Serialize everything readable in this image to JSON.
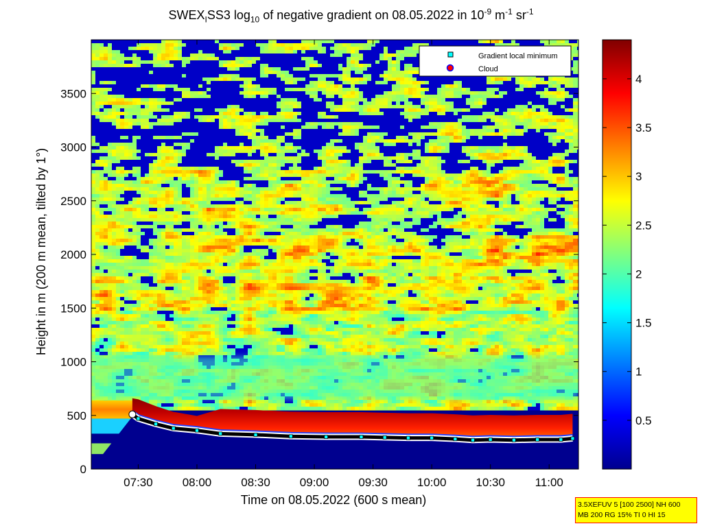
{
  "chart_data": {
    "type": "heatmap",
    "title_parts": {
      "pre": "SWEX",
      "sub1": "I",
      "mid": "SS3 log",
      "sub2": "10",
      "post": " of negative gradient on 08.05.2022 in 10",
      "sup1": "-9",
      "unit1": " m",
      "sup2": "-1",
      "unit2": " sr",
      "sup3": "-1"
    },
    "xlabel": "Time on 08.05.2022 (600 s mean)",
    "ylabel": "Height in m (200 m mean, tilted by 1°)",
    "x_range_hours": [
      7.1,
      11.25
    ],
    "x_ticks": [
      {
        "v": 7.5,
        "label": "07:30"
      },
      {
        "v": 8.0,
        "label": "08:00"
      },
      {
        "v": 8.5,
        "label": "08:30"
      },
      {
        "v": 9.0,
        "label": "09:00"
      },
      {
        "v": 9.5,
        "label": "09:30"
      },
      {
        "v": 10.0,
        "label": "10:00"
      },
      {
        "v": 10.5,
        "label": "10:30"
      },
      {
        "v": 11.0,
        "label": "11:00"
      }
    ],
    "ylim": [
      0,
      4000
    ],
    "y_ticks": [
      {
        "v": 0,
        "label": "0"
      },
      {
        "v": 500,
        "label": "500"
      },
      {
        "v": 1000,
        "label": "1000"
      },
      {
        "v": 1500,
        "label": "1500"
      },
      {
        "v": 2000,
        "label": "2000"
      },
      {
        "v": 2500,
        "label": "2500"
      },
      {
        "v": 3000,
        "label": "3000"
      },
      {
        "v": 3500,
        "label": "3500"
      }
    ],
    "colorbar": {
      "range": [
        0,
        4.4
      ],
      "ticks": [
        {
          "v": 0.5,
          "label": "0.5"
        },
        {
          "v": 1,
          "label": "1"
        },
        {
          "v": 1.5,
          "label": "1.5"
        },
        {
          "v": 2,
          "label": "2"
        },
        {
          "v": 2.5,
          "label": "2.5"
        },
        {
          "v": 3,
          "label": "3"
        },
        {
          "v": 3.5,
          "label": "3.5"
        },
        {
          "v": 4,
          "label": "4"
        }
      ],
      "colormap": "jet"
    },
    "legend": {
      "placement": "top-right",
      "entries": [
        {
          "label": "Gradient local minimum",
          "color": "#00ffff",
          "marker": "square"
        },
        {
          "label": "Cloud",
          "color": "#ff0000",
          "marker": "circle"
        }
      ]
    },
    "series": [
      {
        "name": "Gradient local minimum",
        "x": [
          7.45,
          7.5,
          7.65,
          7.8,
          8.0,
          8.2,
          8.5,
          8.8,
          9.1,
          9.4,
          9.6,
          9.8,
          10.0,
          10.2,
          10.35,
          10.5,
          10.7,
          10.9,
          11.1,
          11.2
        ],
        "y": [
          510,
          470,
          420,
          380,
          360,
          330,
          320,
          305,
          300,
          300,
          295,
          290,
          290,
          280,
          270,
          275,
          270,
          275,
          275,
          285
        ]
      }
    ],
    "cloud_layer": {
      "start_hour": 7.5,
      "base_m": [
        600,
        560,
        520,
        500,
        500,
        500
      ]
    }
  },
  "info_box": {
    "line1": "3.5XEFUV 5 [100 2500] NH 600",
    "line2": "MB 200 RG 15% TI 0 HI 15"
  }
}
